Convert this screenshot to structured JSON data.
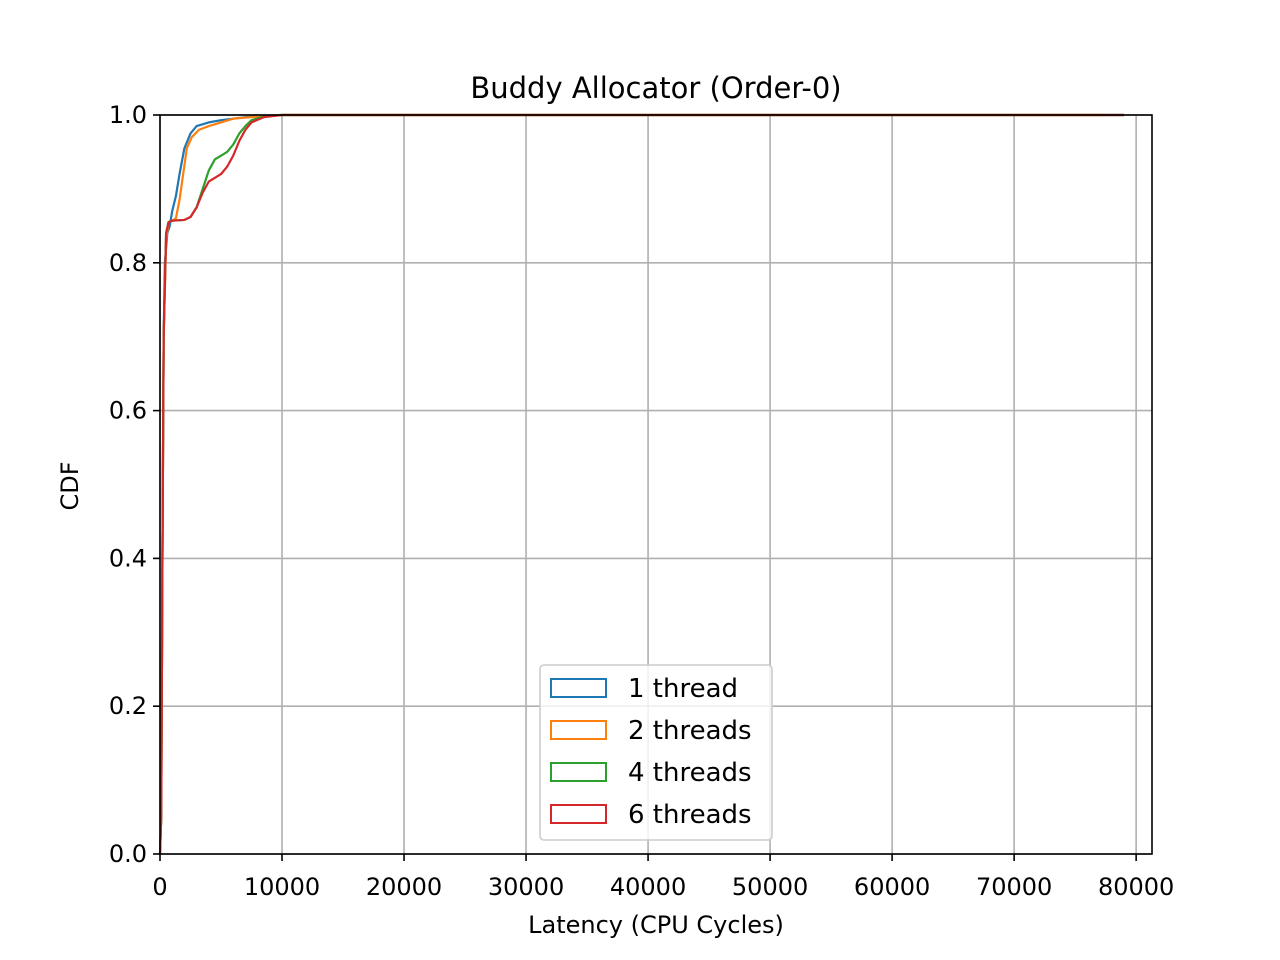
{
  "chart_data": {
    "type": "line",
    "title": "Buddy Allocator (Order-0)",
    "xlabel": "Latency (CPU Cycles)",
    "ylabel": "CDF",
    "xlim": [
      0,
      81300
    ],
    "ylim": [
      0,
      1.0
    ],
    "x_ticks": [
      0,
      10000,
      20000,
      30000,
      40000,
      50000,
      60000,
      70000,
      80000
    ],
    "x_tick_labels": [
      "0",
      "10000",
      "20000",
      "30000",
      "40000",
      "50000",
      "60000",
      "70000",
      "80000"
    ],
    "y_ticks": [
      0.0,
      0.2,
      0.4,
      0.6,
      0.8,
      1.0
    ],
    "y_tick_labels": [
      "0.0",
      "0.2",
      "0.4",
      "0.6",
      "0.8",
      "1.0"
    ],
    "grid": true,
    "legend_position": "lower-center",
    "series": [
      {
        "name": "1 thread",
        "color": "#1f77b4",
        "points": [
          [
            0,
            0
          ],
          [
            100,
            0.05
          ],
          [
            200,
            0.4
          ],
          [
            300,
            0.7
          ],
          [
            400,
            0.8
          ],
          [
            600,
            0.84
          ],
          [
            800,
            0.85
          ],
          [
            1000,
            0.87
          ],
          [
            1300,
            0.89
          ],
          [
            1600,
            0.92
          ],
          [
            2000,
            0.955
          ],
          [
            2500,
            0.975
          ],
          [
            3000,
            0.985
          ],
          [
            4000,
            0.99
          ],
          [
            5000,
            0.993
          ],
          [
            7000,
            0.997
          ],
          [
            10000,
            1.0
          ],
          [
            79000,
            1.0
          ]
        ]
      },
      {
        "name": "2 threads",
        "color": "#ff7f0e",
        "points": [
          [
            0,
            0
          ],
          [
            100,
            0.05
          ],
          [
            200,
            0.4
          ],
          [
            300,
            0.7
          ],
          [
            500,
            0.83
          ],
          [
            700,
            0.855
          ],
          [
            1000,
            0.857
          ],
          [
            1300,
            0.86
          ],
          [
            1600,
            0.885
          ],
          [
            1900,
            0.92
          ],
          [
            2200,
            0.955
          ],
          [
            2600,
            0.97
          ],
          [
            3200,
            0.98
          ],
          [
            4000,
            0.985
          ],
          [
            5000,
            0.99
          ],
          [
            6000,
            0.995
          ],
          [
            8000,
            0.998
          ],
          [
            10000,
            1.0
          ],
          [
            77500,
            1.0
          ]
        ]
      },
      {
        "name": "4 threads",
        "color": "#2ca02c",
        "points": [
          [
            0,
            0
          ],
          [
            100,
            0.05
          ],
          [
            200,
            0.4
          ],
          [
            300,
            0.7
          ],
          [
            500,
            0.84
          ],
          [
            700,
            0.855
          ],
          [
            1000,
            0.857
          ],
          [
            2000,
            0.858
          ],
          [
            2500,
            0.862
          ],
          [
            3000,
            0.875
          ],
          [
            3500,
            0.9
          ],
          [
            4000,
            0.925
          ],
          [
            4500,
            0.94
          ],
          [
            5000,
            0.945
          ],
          [
            5500,
            0.95
          ],
          [
            6000,
            0.96
          ],
          [
            6500,
            0.975
          ],
          [
            7000,
            0.985
          ],
          [
            7500,
            0.993
          ],
          [
            8500,
            0.998
          ],
          [
            10000,
            1.0
          ],
          [
            79000,
            1.0
          ]
        ]
      },
      {
        "name": "6 threads",
        "color": "#d62728",
        "points": [
          [
            0,
            0
          ],
          [
            100,
            0.05
          ],
          [
            200,
            0.4
          ],
          [
            300,
            0.7
          ],
          [
            500,
            0.84
          ],
          [
            700,
            0.855
          ],
          [
            1000,
            0.857
          ],
          [
            2000,
            0.858
          ],
          [
            2500,
            0.862
          ],
          [
            3000,
            0.875
          ],
          [
            3500,
            0.895
          ],
          [
            4000,
            0.91
          ],
          [
            4500,
            0.915
          ],
          [
            5000,
            0.92
          ],
          [
            5500,
            0.93
          ],
          [
            6000,
            0.945
          ],
          [
            6500,
            0.965
          ],
          [
            7000,
            0.98
          ],
          [
            7500,
            0.99
          ],
          [
            8500,
            0.997
          ],
          [
            10000,
            1.0
          ],
          [
            79000,
            1.0
          ]
        ]
      }
    ]
  }
}
